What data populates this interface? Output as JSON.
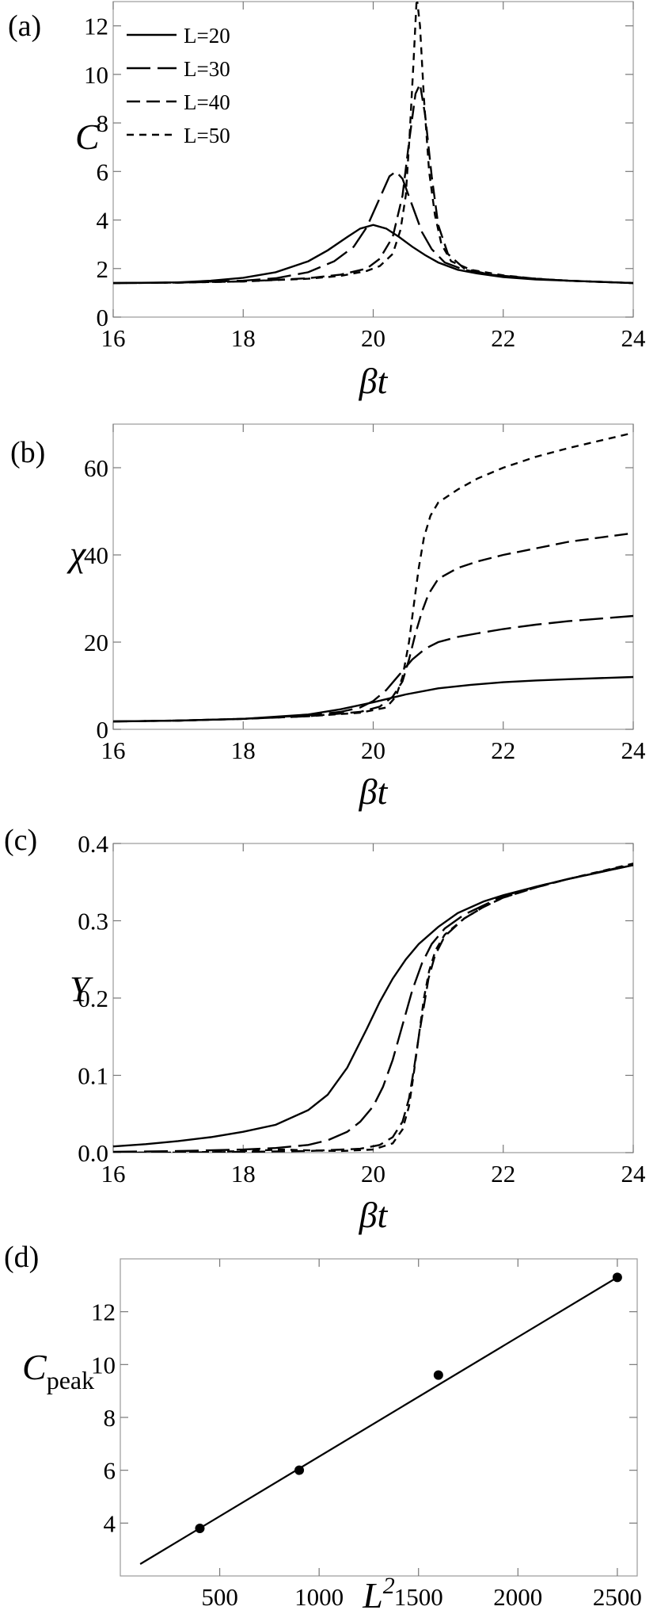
{
  "chart_data": [
    {
      "panel": "(a)",
      "type": "line",
      "xlabel": "βt",
      "ylabel": "C",
      "xlim": [
        16,
        24
      ],
      "ylim": [
        0,
        13
      ],
      "xticks": [
        "16",
        "18",
        "20",
        "22",
        "24"
      ],
      "yticks": [
        "0",
        "2",
        "4",
        "6",
        "8",
        "10",
        "12"
      ],
      "legend": "top-left",
      "series": [
        {
          "name": "L=20",
          "dash": "solid",
          "x": [
            16,
            17,
            17.5,
            18,
            18.5,
            19,
            19.3,
            19.6,
            19.8,
            20,
            20.2,
            20.4,
            20.6,
            20.8,
            21,
            21.3,
            21.6,
            22,
            22.5,
            23,
            23.5,
            24
          ],
          "y": [
            1.4,
            1.43,
            1.5,
            1.62,
            1.85,
            2.3,
            2.75,
            3.3,
            3.65,
            3.8,
            3.65,
            3.3,
            2.9,
            2.55,
            2.25,
            1.95,
            1.8,
            1.65,
            1.55,
            1.5,
            1.45,
            1.4
          ]
        },
        {
          "name": "L=30",
          "dash": "long",
          "x": [
            16,
            17,
            18,
            18.5,
            19,
            19.4,
            19.7,
            19.9,
            20.1,
            20.25,
            20.35,
            20.45,
            20.6,
            20.75,
            20.9,
            21.1,
            21.4,
            21.8,
            22.5,
            23,
            24
          ],
          "y": [
            1.4,
            1.42,
            1.5,
            1.6,
            1.85,
            2.3,
            2.9,
            3.7,
            4.9,
            5.8,
            6.0,
            5.7,
            4.6,
            3.5,
            2.8,
            2.25,
            1.95,
            1.75,
            1.58,
            1.5,
            1.4
          ]
        },
        {
          "name": "L=40",
          "dash": "medium",
          "x": [
            16,
            17,
            18,
            19,
            19.5,
            19.9,
            20.1,
            20.3,
            20.45,
            20.55,
            20.65,
            20.72,
            20.8,
            20.9,
            21.0,
            21.15,
            21.4,
            21.8,
            22.5,
            23,
            24
          ],
          "y": [
            1.4,
            1.42,
            1.47,
            1.6,
            1.75,
            2.0,
            2.4,
            3.3,
            5.0,
            7.2,
            9.2,
            9.6,
            8.3,
            5.8,
            3.8,
            2.6,
            2.0,
            1.75,
            1.58,
            1.5,
            1.4
          ]
        },
        {
          "name": "L=50",
          "dash": "short",
          "x": [
            16,
            17,
            18,
            19,
            19.5,
            19.9,
            20.1,
            20.3,
            20.42,
            20.5,
            20.56,
            20.62,
            20.67,
            20.72,
            20.78,
            20.86,
            20.95,
            21.05,
            21.2,
            21.5,
            22,
            22.5,
            23,
            24
          ],
          "y": [
            1.4,
            1.42,
            1.47,
            1.58,
            1.7,
            1.9,
            2.1,
            2.6,
            3.6,
            5.0,
            7.5,
            10.5,
            13.2,
            12.0,
            9.0,
            6.0,
            4.2,
            3.0,
            2.3,
            1.95,
            1.72,
            1.58,
            1.5,
            1.4
          ]
        }
      ]
    },
    {
      "panel": "(b)",
      "type": "line",
      "xlabel": "βt",
      "ylabel": "χ",
      "xlim": [
        16,
        24
      ],
      "ylim": [
        0,
        70
      ],
      "xticks": [
        "16",
        "18",
        "20",
        "22",
        "24"
      ],
      "yticks": [
        "0",
        "20",
        "40",
        "60"
      ],
      "series": [
        {
          "name": "L=20",
          "dash": "solid",
          "x": [
            16,
            17,
            18,
            19,
            19.5,
            20,
            20.5,
            21,
            21.5,
            22,
            22.5,
            23,
            24
          ],
          "y": [
            1.8,
            2.0,
            2.4,
            3.4,
            4.6,
            6.2,
            8.0,
            9.4,
            10.2,
            10.8,
            11.2,
            11.5,
            12.0
          ]
        },
        {
          "name": "L=30",
          "dash": "long",
          "x": [
            16,
            17,
            18,
            19,
            19.5,
            19.8,
            20,
            20.2,
            20.4,
            20.6,
            20.8,
            21,
            21.3,
            21.6,
            22,
            22.5,
            23,
            24
          ],
          "y": [
            1.8,
            2.0,
            2.4,
            3.2,
            4.0,
            5.0,
            6.5,
            9.0,
            12.5,
            16.0,
            18.5,
            20.0,
            21.2,
            22.0,
            23.0,
            24.0,
            24.8,
            26.0
          ]
        },
        {
          "name": "L=40",
          "dash": "medium",
          "x": [
            16,
            17,
            18,
            19,
            19.8,
            20.1,
            20.3,
            20.45,
            20.55,
            20.65,
            20.75,
            20.85,
            21,
            21.3,
            21.6,
            22,
            22.5,
            23,
            24
          ],
          "y": [
            1.8,
            2.0,
            2.4,
            3.0,
            4.0,
            5.2,
            7.5,
            11.0,
            16.0,
            22.0,
            27.0,
            31.0,
            34.5,
            37.0,
            38.5,
            40.0,
            41.5,
            43.0,
            45.0
          ]
        },
        {
          "name": "L=50",
          "dash": "short",
          "x": [
            16,
            17,
            18,
            19,
            19.8,
            20.2,
            20.35,
            20.45,
            20.55,
            20.62,
            20.7,
            20.78,
            20.88,
            21,
            21.3,
            21.6,
            22,
            22.5,
            23,
            24
          ],
          "y": [
            1.8,
            2.0,
            2.4,
            3.0,
            3.8,
            5.0,
            7.5,
            12.0,
            20.0,
            28.0,
            37.0,
            44.0,
            49.0,
            52.0,
            55.0,
            57.5,
            60.0,
            62.5,
            64.5,
            68.0
          ]
        }
      ]
    },
    {
      "panel": "(c)",
      "type": "line",
      "xlabel": "βt",
      "ylabel": "Y",
      "xlim": [
        16,
        24
      ],
      "ylim": [
        0,
        0.4
      ],
      "xticks": [
        "16",
        "18",
        "20",
        "22",
        "24"
      ],
      "yticks": [
        "0.0",
        "0.1",
        "0.2",
        "0.3",
        "0.4"
      ],
      "series": [
        {
          "name": "L=20",
          "dash": "solid",
          "x": [
            16,
            16.5,
            17,
            17.5,
            18,
            18.5,
            19,
            19.3,
            19.6,
            19.9,
            20.1,
            20.3,
            20.5,
            20.7,
            21,
            21.3,
            21.7,
            22,
            22.5,
            23,
            23.5,
            24
          ],
          "y": [
            0.008,
            0.011,
            0.015,
            0.02,
            0.027,
            0.036,
            0.055,
            0.075,
            0.11,
            0.16,
            0.195,
            0.225,
            0.25,
            0.27,
            0.292,
            0.31,
            0.325,
            0.333,
            0.344,
            0.354,
            0.363,
            0.372
          ]
        },
        {
          "name": "L=30",
          "dash": "long",
          "x": [
            16,
            17,
            18,
            18.5,
            19,
            19.3,
            19.6,
            19.8,
            20,
            20.15,
            20.3,
            20.45,
            20.6,
            20.75,
            20.9,
            21.1,
            21.4,
            21.7,
            22,
            22.5,
            23,
            24
          ],
          "y": [
            0.001,
            0.002,
            0.004,
            0.006,
            0.01,
            0.016,
            0.027,
            0.04,
            0.06,
            0.085,
            0.12,
            0.165,
            0.21,
            0.245,
            0.27,
            0.29,
            0.308,
            0.32,
            0.332,
            0.344,
            0.354,
            0.372
          ]
        },
        {
          "name": "L=40",
          "dash": "medium",
          "x": [
            16,
            17,
            18,
            19,
            19.8,
            20.1,
            20.3,
            20.45,
            20.55,
            20.63,
            20.7,
            20.78,
            20.85,
            20.95,
            21.1,
            21.4,
            21.7,
            22,
            22.5,
            23,
            24
          ],
          "y": [
            0.0,
            0.0,
            0.001,
            0.002,
            0.005,
            0.01,
            0.02,
            0.04,
            0.07,
            0.11,
            0.15,
            0.19,
            0.225,
            0.255,
            0.28,
            0.303,
            0.318,
            0.33,
            0.343,
            0.354,
            0.373
          ]
        },
        {
          "name": "L=50",
          "dash": "short",
          "x": [
            16,
            17,
            18,
            18.6,
            19,
            19.5,
            20,
            20.3,
            20.45,
            20.55,
            20.62,
            20.7,
            20.78,
            20.86,
            20.96,
            21.1,
            21.4,
            21.7,
            22,
            22.5,
            23,
            24
          ],
          "y": [
            0.0,
            0.0,
            0.002,
            0.004,
            0.003,
            0.002,
            0.004,
            0.012,
            0.03,
            0.06,
            0.1,
            0.15,
            0.2,
            0.235,
            0.262,
            0.282,
            0.303,
            0.318,
            0.33,
            0.343,
            0.354,
            0.374
          ]
        }
      ]
    },
    {
      "panel": "(d)",
      "type": "scatter",
      "xlabel": "L2",
      "ylabel": "Cpeak",
      "xlim": [
        0,
        2600
      ],
      "ylim": [
        2,
        14
      ],
      "xticks": [
        "500",
        "1000",
        "1500",
        "2000",
        "2500"
      ],
      "yticks": [
        "4",
        "6",
        "8",
        "10",
        "12"
      ],
      "points": {
        "x": [
          400,
          900,
          1600,
          2500
        ],
        "y": [
          3.8,
          6.0,
          9.6,
          13.3
        ]
      },
      "fit_line": {
        "x": [
          100,
          2500
        ],
        "y": [
          2.45,
          13.3
        ]
      }
    }
  ]
}
